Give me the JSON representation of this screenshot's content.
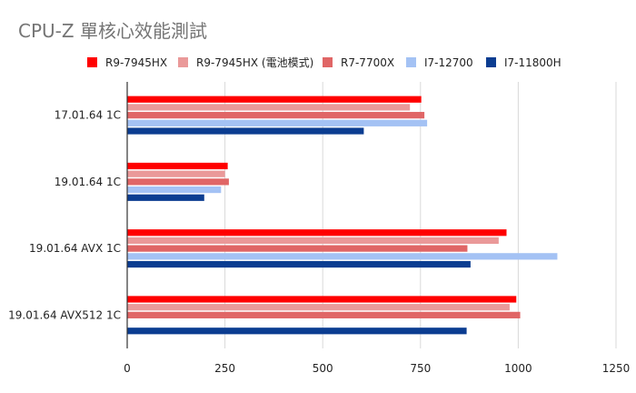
{
  "chart_data": {
    "type": "bar",
    "orientation": "horizontal",
    "title": "CPU-Z  單核心效能測試",
    "categories": [
      "17.01.64 1C",
      "19.01.64 1C",
      "19.01.64 AVX 1C",
      "19.01.64 AVX512 1C"
    ],
    "series": [
      {
        "name": "R9-7945HX",
        "color": "#ff0000",
        "values": [
          752,
          257,
          970,
          995
        ]
      },
      {
        "name": "R9-7945HX (電池模式)",
        "color": "#ea9999",
        "values": [
          723,
          250,
          950,
          978
        ]
      },
      {
        "name": "R7-7700X",
        "color": "#e06666",
        "values": [
          760,
          260,
          870,
          1005
        ]
      },
      {
        "name": "I7-12700",
        "color": "#a4c2f4",
        "values": [
          767,
          240,
          1100,
          null
        ]
      },
      {
        "name": "I7-11800H",
        "color": "#0b3d91",
        "values": [
          605,
          197,
          878,
          868
        ]
      }
    ],
    "xlim": [
      0,
      1250
    ],
    "xticks": [
      0,
      250,
      500,
      750,
      1000,
      1250
    ],
    "xtick_labels": [
      "0",
      "250",
      "500",
      "750",
      "1000",
      "1250"
    ],
    "grid": true,
    "legend_position": "top"
  }
}
